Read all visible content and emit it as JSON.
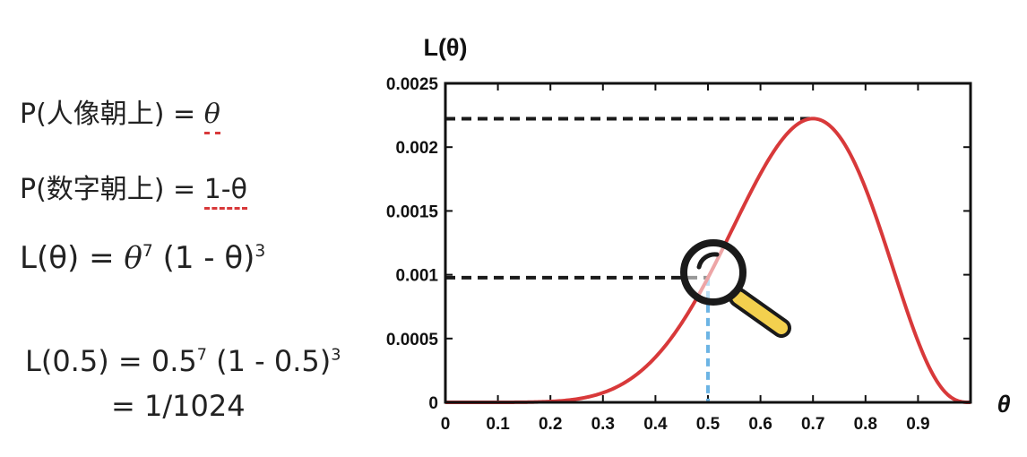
{
  "equations": {
    "p_head": {
      "prefix": "P(人像朝上) = ",
      "value": "θ"
    },
    "p_tail": {
      "prefix": "P(数字朝上) = ",
      "value": "1-θ"
    },
    "likelihood": {
      "lhs": "L(θ) = ",
      "base1": "θ",
      "exp1": "7",
      "mid": " (1 - θ)",
      "exp2": "3"
    },
    "example": {
      "lhs": "L(0.5) = 0.5",
      "exp1": "7",
      "mid": " (1 - 0.5)",
      "exp2": "3"
    },
    "result": "= 1/1024"
  },
  "chart_data": {
    "type": "line",
    "ylabel": "L(θ)",
    "xlabel": "θ",
    "xlim": [
      0,
      1
    ],
    "ylim": [
      0,
      0.0025
    ],
    "xticks": [
      "0",
      "0.1",
      "0.2",
      "0.3",
      "0.4",
      "0.5",
      "0.6",
      "0.7",
      "0.8",
      "0.9"
    ],
    "yticks": [
      "0",
      "0.0005",
      "0.001",
      "0.0015",
      "0.002",
      "0.0025"
    ],
    "function": "θ^7 (1-θ)^3",
    "line_color": "#d8393a",
    "guides": [
      {
        "x": 0.7,
        "y": 0.002223
      },
      {
        "x": 0.5,
        "y": 0.000977
      }
    ],
    "guide_color": "#1a1a1a",
    "marker_color": "#6cb4e4",
    "magnifier_color": "#f3d04e",
    "grid": false
  }
}
